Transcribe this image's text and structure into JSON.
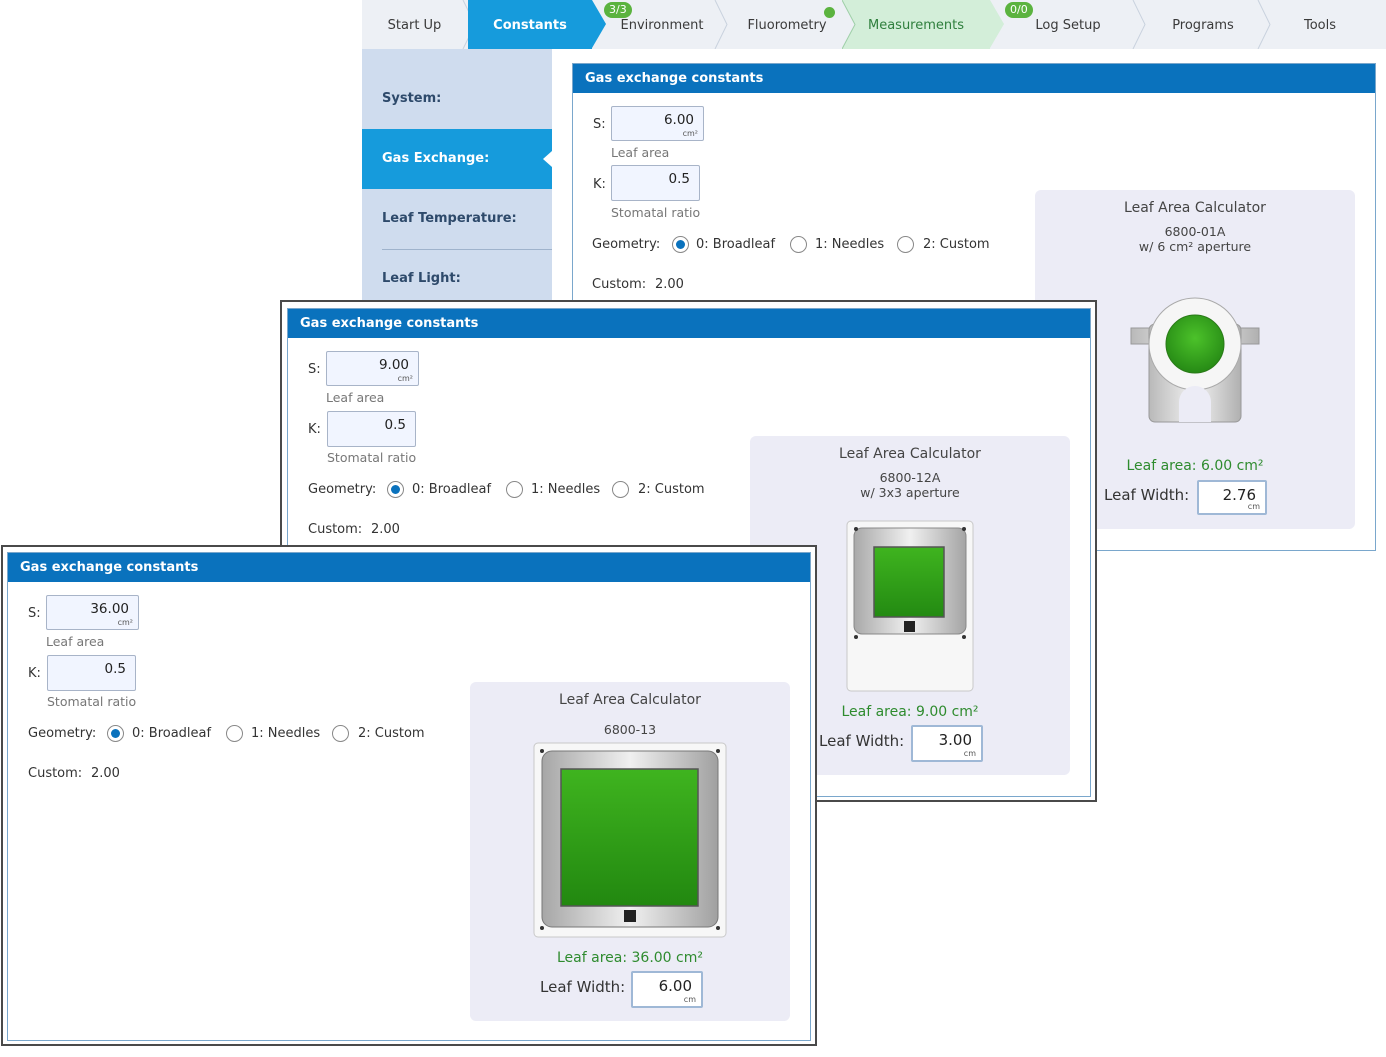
{
  "tabs": {
    "start_up": "Start Up",
    "constants": "Constants",
    "environment": "Environment",
    "environment_badge": "3/3",
    "fluorometry": "Fluorometry",
    "measurements": "Measurements",
    "measurements_badge": "0/0",
    "log_setup": "Log Setup",
    "programs": "Programs",
    "tools": "Tools"
  },
  "sidebar": {
    "items": [
      {
        "label": "System:"
      },
      {
        "label": "Gas Exchange:"
      },
      {
        "label": "Leaf Temperature:"
      },
      {
        "label": "Leaf Light:"
      }
    ]
  },
  "panels": [
    {
      "title": "Gas exchange constants",
      "s_label": "S:",
      "s_value": "6.00",
      "s_unit": "cm²",
      "s_caption": "Leaf area",
      "k_label": "K:",
      "k_value": "0.5",
      "k_caption": "Stomatal ratio",
      "geometry_label": "Geometry:",
      "geometry_options": [
        "0: Broadleaf",
        "1: Needles",
        "2: Custom"
      ],
      "custom_label": "Custom:",
      "custom_value": "2.00",
      "calc_title": "Leaf Area Calculator",
      "calc_model": "6800-01A",
      "calc_aperture": "w/ 6 cm² aperture",
      "leaf_area": "Leaf area: 6.00 cm²",
      "leaf_width_label": "Leaf Width:",
      "leaf_width_value": "2.76",
      "leaf_width_unit": "cm"
    },
    {
      "title": "Gas exchange constants",
      "s_label": "S:",
      "s_value": "9.00",
      "s_unit": "cm²",
      "s_caption": "Leaf area",
      "k_label": "K:",
      "k_value": "0.5",
      "k_caption": "Stomatal ratio",
      "geometry_label": "Geometry:",
      "geometry_options": [
        "0: Broadleaf",
        "1: Needles",
        "2: Custom"
      ],
      "custom_label": "Custom:",
      "custom_value": "2.00",
      "calc_title": "Leaf Area Calculator",
      "calc_model": "6800-12A",
      "calc_aperture": "w/ 3x3 aperture",
      "leaf_area": "Leaf area: 9.00 cm²",
      "leaf_width_label": "Leaf Width:",
      "leaf_width_value": "3.00",
      "leaf_width_unit": "cm"
    },
    {
      "title": "Gas exchange constants",
      "s_label": "S:",
      "s_value": "36.00",
      "s_unit": "cm²",
      "s_caption": "Leaf area",
      "k_label": "K:",
      "k_value": "0.5",
      "k_caption": "Stomatal ratio",
      "geometry_label": "Geometry:",
      "geometry_options": [
        "0: Broadleaf",
        "1: Needles",
        "2: Custom"
      ],
      "custom_label": "Custom:",
      "custom_value": "2.00",
      "calc_title": "Leaf Area Calculator",
      "calc_model": "6800-13",
      "leaf_area": "Leaf area: 36.00 cm²",
      "leaf_width_label": "Leaf Width:",
      "leaf_width_value": "6.00",
      "leaf_width_unit": "cm"
    }
  ],
  "colors": {
    "header_blue": "#0a72bd",
    "active_tab": "#169bdc",
    "measurements_tab": "#d3eed9",
    "badge_green": "#5bb33f",
    "leaf_area_green": "#2e8b2e",
    "leaf_green": "#3aa51c"
  }
}
